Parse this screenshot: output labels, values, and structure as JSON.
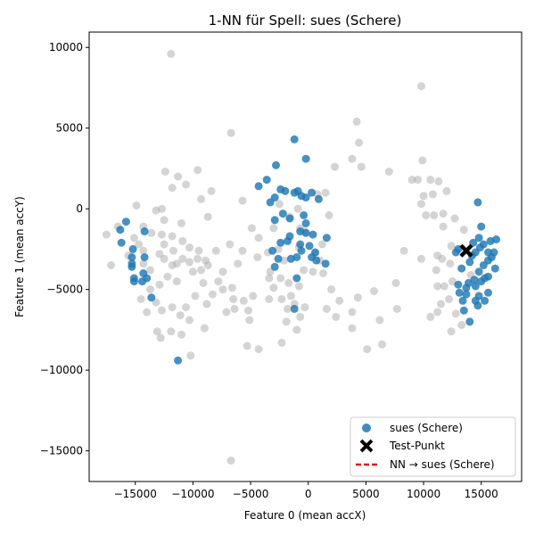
{
  "chart_data": {
    "type": "scatter",
    "title": "1-NN für Spell: sues (Schere)",
    "xlabel": "Feature 0 (mean accX)",
    "ylabel": "Feature 1 (mean accY)",
    "xlim": [
      -19000,
      18500
    ],
    "ylim": [
      -16900,
      10950
    ],
    "xticks": [
      -15000,
      -10000,
      -5000,
      0,
      5000,
      10000,
      15000
    ],
    "yticks": [
      -15000,
      -10000,
      -5000,
      0,
      5000,
      10000
    ],
    "xtick_labels": [
      "−15000",
      "−10000",
      "−5000",
      "0",
      "5000",
      "10000",
      "15000"
    ],
    "ytick_labels": [
      "−15000",
      "−10000",
      "−5000",
      "0",
      "5000",
      "10000"
    ],
    "grid": false,
    "legend_position": "lower right",
    "legend": {
      "entries": [
        "sues (Schere)",
        "Test-Punkt",
        "NN → sues (Schere)"
      ]
    },
    "series": [
      {
        "name": "",
        "color": "#aaaaaa",
        "points": [
          [
            -11900,
            9600
          ],
          [
            9800,
            7600
          ],
          [
            4200,
            5400
          ],
          [
            4400,
            4100
          ],
          [
            -6700,
            4700
          ],
          [
            3800,
            3100
          ],
          [
            4600,
            2600
          ],
          [
            2300,
            2600
          ],
          [
            9900,
            3000
          ],
          [
            7000,
            2300
          ],
          [
            -12400,
            2300
          ],
          [
            -11300,
            2000
          ],
          [
            -9600,
            2400
          ],
          [
            -10600,
            1500
          ],
          [
            -8400,
            1100
          ],
          [
            -11800,
            1300
          ],
          [
            9000,
            1800
          ],
          [
            9500,
            1800
          ],
          [
            10600,
            1800
          ],
          [
            11300,
            1700
          ],
          [
            12000,
            1100
          ],
          [
            10800,
            900
          ],
          [
            10000,
            800
          ],
          [
            9800,
            300
          ],
          [
            -14900,
            200
          ],
          [
            -13200,
            -100
          ],
          [
            -12700,
            0
          ],
          [
            -9300,
            600
          ],
          [
            -8700,
            -500
          ],
          [
            -5700,
            500
          ],
          [
            -11000,
            -900
          ],
          [
            -12500,
            -700
          ],
          [
            -14300,
            -1100
          ],
          [
            -13600,
            -1500
          ],
          [
            -16500,
            -1100
          ],
          [
            -17500,
            -1600
          ],
          [
            -15100,
            -1800
          ],
          [
            -14700,
            -2200
          ],
          [
            -12700,
            -1600
          ],
          [
            -11800,
            -1700
          ],
          [
            -12500,
            -2200
          ],
          [
            -10900,
            -2000
          ],
          [
            -10300,
            -2400
          ],
          [
            -11700,
            -2600
          ],
          [
            -12900,
            -2800
          ],
          [
            -14300,
            -2600
          ],
          [
            -14300,
            -3400
          ],
          [
            -15600,
            -2900
          ],
          [
            -17100,
            -3500
          ],
          [
            -11400,
            -3400
          ],
          [
            -10900,
            -3100
          ],
          [
            -10300,
            -3300
          ],
          [
            -9600,
            -3100
          ],
          [
            -9300,
            -3800
          ],
          [
            -8700,
            -3500
          ],
          [
            -11400,
            -4500
          ],
          [
            -12200,
            -4200
          ],
          [
            -12900,
            -4700
          ],
          [
            -13700,
            -5000
          ],
          [
            -14500,
            -5600
          ],
          [
            -13200,
            -5800
          ],
          [
            -12700,
            -6300
          ],
          [
            -11800,
            -6100
          ],
          [
            -11100,
            -6600
          ],
          [
            -10600,
            -6100
          ],
          [
            -9800,
            -5400
          ],
          [
            -9100,
            -4600
          ],
          [
            -8300,
            -5300
          ],
          [
            -7400,
            -5000
          ],
          [
            -7100,
            -6400
          ],
          [
            -6500,
            -5600
          ],
          [
            -10300,
            -6900
          ],
          [
            -11900,
            -7600
          ],
          [
            -13100,
            -7600
          ],
          [
            -12800,
            -8000
          ],
          [
            -11000,
            -7800
          ],
          [
            -10200,
            -9100
          ],
          [
            -9000,
            -7400
          ],
          [
            -8800,
            -5900
          ],
          [
            -6600,
            -4900
          ],
          [
            -5600,
            -5700
          ],
          [
            -5100,
            -6900
          ],
          [
            -4800,
            -5400
          ],
          [
            -4400,
            -3000
          ],
          [
            -4300,
            -1800
          ],
          [
            -3000,
            -1200
          ],
          [
            -2600,
            -2500
          ],
          [
            -2100,
            -3200
          ],
          [
            -3400,
            -4300
          ],
          [
            -2400,
            -4300
          ],
          [
            -1700,
            -4600
          ],
          [
            -1200,
            -5900
          ],
          [
            -1900,
            -7000
          ],
          [
            -2300,
            -8300
          ],
          [
            -1000,
            -7500
          ],
          [
            -1800,
            -6200
          ],
          [
            -800,
            -4800
          ],
          [
            -400,
            -3800
          ],
          [
            -800,
            -2400
          ],
          [
            -300,
            -1400
          ],
          [
            -1600,
            -500
          ],
          [
            -2500,
            300
          ],
          [
            -900,
            0
          ],
          [
            800,
            900
          ],
          [
            1500,
            1000
          ],
          [
            1800,
            -400
          ],
          [
            1200,
            -2200
          ],
          [
            1300,
            -4000
          ],
          [
            1000,
            -3200
          ],
          [
            -700,
            -1200
          ],
          [
            2700,
            -5700
          ],
          [
            3800,
            -6400
          ],
          [
            4300,
            -5500
          ],
          [
            5700,
            -5100
          ],
          [
            6200,
            -6900
          ],
          [
            7700,
            -6200
          ],
          [
            6400,
            -8400
          ],
          [
            5100,
            -8700
          ],
          [
            3800,
            -7400
          ],
          [
            2400,
            -6700
          ],
          [
            2000,
            -5000
          ],
          [
            1600,
            -6200
          ],
          [
            -4300,
            -8700
          ],
          [
            -6400,
            -6200
          ],
          [
            -8900,
            -3200
          ],
          [
            -9500,
            -2600
          ],
          [
            -12500,
            -3100
          ],
          [
            -11800,
            -3500
          ],
          [
            -10000,
            -3900
          ],
          [
            -7400,
            -3900
          ],
          [
            -7800,
            -4500
          ],
          [
            -5200,
            -6300
          ],
          [
            -3400,
            -5600
          ],
          [
            -4900,
            -1200
          ],
          [
            -5700,
            -2600
          ],
          [
            -6800,
            -2200
          ],
          [
            -6100,
            -3400
          ],
          [
            -3500,
            -2700
          ],
          [
            -3000,
            -4900
          ],
          [
            -2300,
            -5600
          ],
          [
            -1500,
            -5400
          ],
          [
            -700,
            -6700
          ],
          [
            -300,
            -6100
          ],
          [
            600,
            -2800
          ],
          [
            400,
            -3900
          ],
          [
            9800,
            -3100
          ],
          [
            11600,
            -3100
          ],
          [
            12300,
            -3400
          ],
          [
            12400,
            -2300
          ],
          [
            11700,
            -1100
          ],
          [
            11700,
            -300
          ],
          [
            10900,
            -400
          ],
          [
            10200,
            -400
          ],
          [
            12700,
            -600
          ],
          [
            13500,
            -1300
          ],
          [
            11200,
            -2900
          ],
          [
            11100,
            -3800
          ],
          [
            11200,
            -4800
          ],
          [
            11800,
            -4800
          ],
          [
            12500,
            -4500
          ],
          [
            12200,
            -5600
          ],
          [
            11500,
            -5900
          ],
          [
            11200,
            -6400
          ],
          [
            10600,
            -6700
          ],
          [
            12800,
            -6500
          ],
          [
            13300,
            -7200
          ],
          [
            12400,
            -7600
          ],
          [
            14100,
            -4100
          ],
          [
            7600,
            -4600
          ],
          [
            8300,
            -2600
          ],
          [
            -5300,
            -8500
          ],
          [
            -6700,
            -15600
          ],
          [
            -14000,
            -6400
          ],
          [
            -13700,
            -3800
          ],
          [
            -8000,
            -2600
          ],
          [
            -3300,
            -3900
          ]
        ]
      },
      {
        "name": "sues (Schere)",
        "color": "#1f77b4",
        "points": [
          [
            -1200,
            4300
          ],
          [
            -200,
            3100
          ],
          [
            -2800,
            2700
          ],
          [
            -3600,
            1800
          ],
          [
            -4300,
            1400
          ],
          [
            -2400,
            1200
          ],
          [
            -2000,
            1100
          ],
          [
            -1200,
            1000
          ],
          [
            -900,
            1100
          ],
          [
            -600,
            800
          ],
          [
            -200,
            700
          ],
          [
            300,
            1000
          ],
          [
            900,
            600
          ],
          [
            -2900,
            700
          ],
          [
            -3300,
            400
          ],
          [
            -2200,
            -300
          ],
          [
            -1600,
            -600
          ],
          [
            -2900,
            -700
          ],
          [
            -400,
            -400
          ],
          [
            -200,
            -900
          ],
          [
            -200,
            -1500
          ],
          [
            -700,
            -1400
          ],
          [
            400,
            -1600
          ],
          [
            1600,
            -1800
          ],
          [
            -1600,
            -1700
          ],
          [
            -2400,
            -2100
          ],
          [
            -1800,
            -2000
          ],
          [
            -3100,
            -2600
          ],
          [
            -2900,
            -3600
          ],
          [
            -2600,
            -3100
          ],
          [
            -1500,
            -3100
          ],
          [
            -1000,
            -3000
          ],
          [
            -700,
            -2200
          ],
          [
            -600,
            -2600
          ],
          [
            100,
            -2300
          ],
          [
            600,
            -2700
          ],
          [
            300,
            -3000
          ],
          [
            700,
            -3200
          ],
          [
            1500,
            -3400
          ],
          [
            -1000,
            -4300
          ],
          [
            -1200,
            -6200
          ],
          [
            -15800,
            -800
          ],
          [
            -16300,
            -1300
          ],
          [
            -16200,
            -2100
          ],
          [
            -15200,
            -2500
          ],
          [
            -15300,
            -3000
          ],
          [
            -15300,
            -3400
          ],
          [
            -15300,
            -3600
          ],
          [
            -15100,
            -4500
          ],
          [
            -15100,
            -4300
          ],
          [
            -14400,
            -4500
          ],
          [
            -14300,
            -4000
          ],
          [
            -14200,
            -3000
          ],
          [
            -14000,
            -4300
          ],
          [
            -13600,
            -5500
          ],
          [
            -14200,
            -1400
          ],
          [
            -11300,
            -9400
          ],
          [
            14700,
            400
          ],
          [
            14300,
            -2100
          ],
          [
            14500,
            -2700
          ],
          [
            14900,
            -2400
          ],
          [
            15200,
            -2200
          ],
          [
            15800,
            -2000
          ],
          [
            16300,
            -1900
          ],
          [
            15000,
            -1100
          ],
          [
            14800,
            -1800
          ],
          [
            15600,
            -2700
          ],
          [
            15200,
            -3500
          ],
          [
            16200,
            -3700
          ],
          [
            15600,
            -4200
          ],
          [
            15000,
            -4500
          ],
          [
            14800,
            -5400
          ],
          [
            14700,
            -6000
          ],
          [
            15300,
            -5700
          ],
          [
            15600,
            -5200
          ],
          [
            15300,
            -4300
          ],
          [
            14500,
            -4800
          ],
          [
            14400,
            -4400
          ],
          [
            13900,
            -4600
          ],
          [
            13700,
            -4900
          ],
          [
            13700,
            -5300
          ],
          [
            13400,
            -5700
          ],
          [
            13500,
            -6300
          ],
          [
            13100,
            -5200
          ],
          [
            13000,
            -4700
          ],
          [
            13300,
            -3700
          ],
          [
            13000,
            -2500
          ],
          [
            12800,
            -2700
          ],
          [
            14200,
            -2900
          ],
          [
            14000,
            -3300
          ],
          [
            14800,
            -3900
          ],
          [
            15600,
            -3200
          ],
          [
            15900,
            -3000
          ],
          [
            16100,
            -2700
          ],
          [
            14000,
            -7000
          ],
          [
            14500,
            -5700
          ]
        ]
      }
    ],
    "test_point": {
      "x": 13700,
      "y": -2600
    },
    "nn_point": {
      "x": 13900,
      "y": -2500
    }
  }
}
